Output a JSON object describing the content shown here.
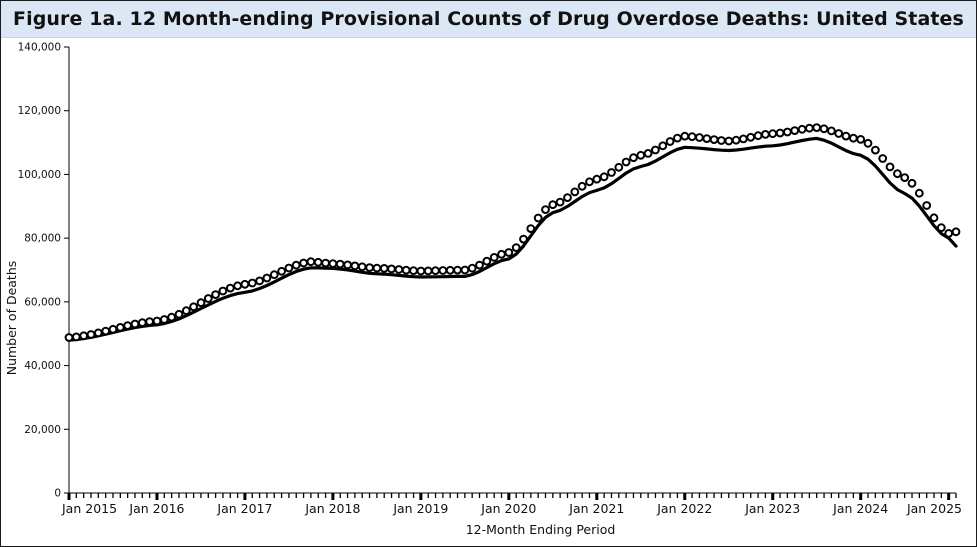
{
  "title": "Figure 1a. 12 Month-ending Provisional Counts of Drug Overdose Deaths: United States",
  "chart_data": {
    "type": "line",
    "title": "Figure 1a. 12 Month-ending Provisional Counts of Drug Overdose Deaths: United States",
    "xlabel": "12-Month Ending Period",
    "ylabel": "Number of Deaths",
    "ylim": [
      0,
      140000
    ],
    "y_ticks": [
      "0",
      "20,000",
      "40,000",
      "60,000",
      "80,000",
      "100,000",
      "120,000",
      "140,000"
    ],
    "x_ticks": [
      "Jan 2015",
      "Jan 2016",
      "Jan 2017",
      "Jan 2018",
      "Jan 2019",
      "Jan 2020",
      "Jan 2021",
      "Jan 2022",
      "Jan 2023",
      "Jan 2024",
      "Jan 2025"
    ],
    "x_start": "Jan 2015",
    "x_end": "Feb 2025",
    "grid": false,
    "legend": "none",
    "series": [
      {
        "style": "solid-line",
        "color": "#000000",
        "anchors": [
          [
            "Jan 2015",
            48000
          ],
          [
            "Jan 2016",
            52800
          ],
          [
            "Jan 2017",
            63000
          ],
          [
            "Oct 2017",
            70700
          ],
          [
            "Jan 2018",
            70500
          ],
          [
            "Jul 2018",
            68800
          ],
          [
            "Jan 2019",
            67800
          ],
          [
            "Jul 2019",
            68000
          ],
          [
            "Jan 2020",
            73500
          ],
          [
            "Jul 2020",
            88000
          ],
          [
            "Jan 2021",
            95000
          ],
          [
            "Jul 2021",
            102500
          ],
          [
            "Jan 2022",
            108500
          ],
          [
            "Jul 2022",
            107500
          ],
          [
            "Jan 2023",
            109000
          ],
          [
            "Jul 2023",
            111300
          ],
          [
            "Jan 2024",
            106000
          ],
          [
            "Jul 2024",
            94000
          ],
          [
            "Jan 2025",
            80000
          ],
          [
            "Feb 2025",
            77500
          ]
        ]
      },
      {
        "style": "open-circles",
        "color": "#000000",
        "anchors": [
          [
            "Jan 2015",
            48800
          ],
          [
            "Jan 2016",
            54000
          ],
          [
            "Jan 2017",
            65500
          ],
          [
            "Oct 2017",
            72600
          ],
          [
            "Jan 2018",
            72000
          ],
          [
            "Jul 2018",
            70600
          ],
          [
            "Jan 2019",
            69700
          ],
          [
            "Jul 2019",
            70000
          ],
          [
            "Jan 2020",
            75500
          ],
          [
            "Jul 2020",
            90500
          ],
          [
            "Jan 2021",
            98500
          ],
          [
            "Jul 2021",
            106000
          ],
          [
            "Jan 2022",
            112000
          ],
          [
            "Jul 2022",
            110500
          ],
          [
            "Jan 2023",
            112800
          ],
          [
            "Jul 2023",
            114700
          ],
          [
            "Jan 2024",
            111000
          ],
          [
            "Jul 2024",
            99000
          ],
          [
            "Jan 2025",
            81500
          ],
          [
            "Feb 2025",
            82000
          ]
        ]
      }
    ]
  }
}
